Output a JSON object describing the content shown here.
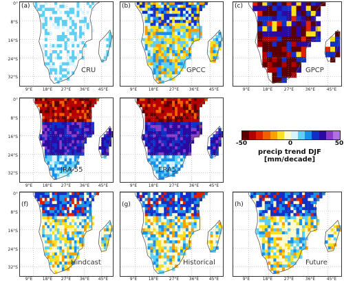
{
  "panels": [
    {
      "letter": "(a)",
      "name": "CRU",
      "pattern": "sparse-cyan"
    },
    {
      "letter": "(b)",
      "name": "GPCC",
      "pattern": "mixed-blue-yellow"
    },
    {
      "letter": "(c)",
      "name": "GPCP",
      "pattern": "blocky-dry"
    },
    {
      "letter": "(d)",
      "name": "JRA-55",
      "pattern": "dry-north-wet-south"
    },
    {
      "letter": "(e)",
      "name": "ERA5",
      "pattern": "dry-north-wet-south"
    },
    {
      "letter": "(f)",
      "name": "Hindcast",
      "pattern": "wet-north-mixed"
    },
    {
      "letter": "(g)",
      "name": "Historical",
      "pattern": "wet-north-mixed"
    },
    {
      "letter": "(h)",
      "name": "Future",
      "pattern": "wet-north-mixed"
    }
  ],
  "axes": {
    "y_ticks": [
      "0°",
      "8°S",
      "16°S",
      "24°S",
      "32°S"
    ],
    "x_ticks": [
      "9°E",
      "18°E",
      "27°E",
      "36°E",
      "45°E"
    ]
  },
  "colorbar": {
    "min_label": "-50",
    "mid_label": "0",
    "max_label": "50",
    "title": "precip trend DJF [mm/decade]",
    "colors": [
      "#5a0000",
      "#b40000",
      "#e02000",
      "#f06000",
      "#f8a000",
      "#fde020",
      "#fffad0",
      "#d6f4ff",
      "#5fd0f4",
      "#1a90e8",
      "#1030c8",
      "#2a0aa0",
      "#8a3cc8",
      "#b070e0"
    ]
  }
}
